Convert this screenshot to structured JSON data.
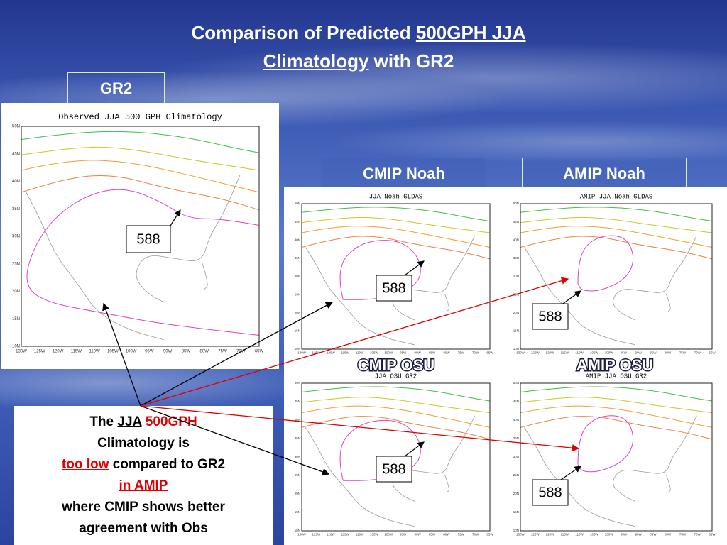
{
  "title": {
    "line1_plain": "Comparison of Predicted",
    "line1_underlined": "500GPH JJA",
    "line2_underlined": "Climatology",
    "line2_plain": "with GR2"
  },
  "labels": {
    "gr2": "GR2",
    "cmip_noah": "CMIP Noah",
    "amip_noah": "AMIP Noah",
    "cmip_osu": "CMIP OSU",
    "amip_osu": "AMIP OSU"
  },
  "maps": [
    {
      "title": "Observed JJA 500 GPH Climatology"
    },
    {
      "title": "JJA Noah GLDAS"
    },
    {
      "title": "AMIP JJA Noah GLDAS"
    },
    {
      "title": "JJA OSU GR2"
    },
    {
      "title": "AMIP JJA OSU GR2"
    }
  ],
  "map_axes": {
    "lat": [
      "50N",
      "45N",
      "40N",
      "35N",
      "30N",
      "25N",
      "20N",
      "15N",
      "10N"
    ],
    "lon": [
      "130W",
      "125W",
      "120W",
      "115W",
      "110W",
      "105W",
      "100W",
      "95W",
      "90W",
      "85W",
      "80W",
      "75W",
      "70W",
      "65W"
    ]
  },
  "callouts": [
    "588",
    "588",
    "588",
    "588",
    "588"
  ],
  "note": {
    "l1": [
      "The",
      "JJA",
      "500GPH"
    ],
    "l2": "Climatology is",
    "l3": [
      "too low",
      "compared to GR2"
    ],
    "l4": "in AMIP",
    "l5": "where CMIP shows better",
    "l6": "agreement with Obs"
  }
}
